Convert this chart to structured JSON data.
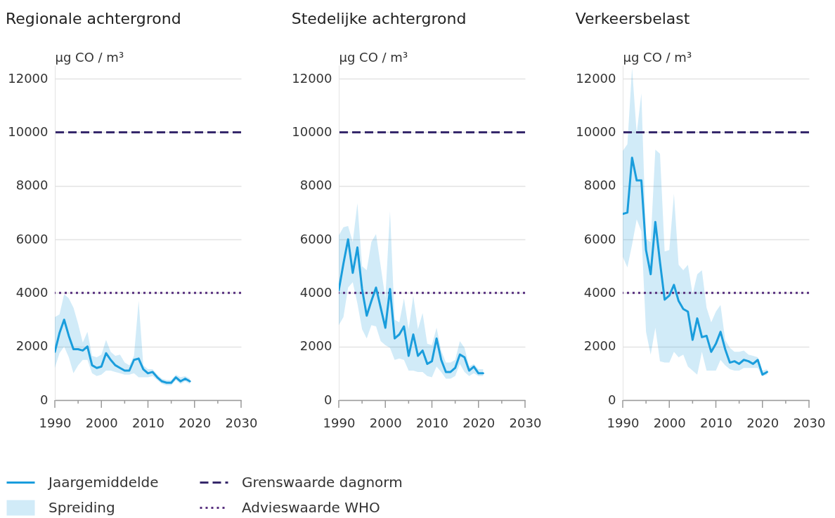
{
  "chart_data": [
    {
      "type": "line",
      "title": "Regionale achtergrond",
      "ylabel": "µg CO / m³",
      "x": [
        1990,
        1991,
        1992,
        1993,
        1994,
        1995,
        1996,
        1997,
        1998,
        1999,
        2000,
        2001,
        2002,
        2003,
        2004,
        2005,
        2006,
        2007,
        2008,
        2009,
        2010,
        2011,
        2012,
        2013,
        2014,
        2015,
        2016,
        2017,
        2018,
        2019
      ],
      "series": [
        {
          "name": "Jaargemiddelde",
          "color": "#1a9ddc",
          "values": [
            1800,
            2500,
            3000,
            2400,
            1900,
            1900,
            1850,
            2000,
            1300,
            1200,
            1250,
            1750,
            1500,
            1300,
            1200,
            1100,
            1100,
            1500,
            1550,
            1150,
            1000,
            1050,
            850,
            700,
            650,
            650,
            850,
            700,
            800,
            700
          ],
          "lower": [
            1200,
            1750,
            2000,
            1600,
            1000,
            1300,
            1500,
            1500,
            1000,
            900,
            950,
            1100,
            1100,
            1050,
            1000,
            950,
            950,
            1000,
            850,
            850,
            850,
            900,
            750,
            600,
            550,
            550,
            750,
            600,
            700,
            600
          ],
          "upper": [
            3100,
            3200,
            3950,
            3800,
            3450,
            2850,
            2150,
            2550,
            1650,
            1600,
            1700,
            2250,
            1800,
            1650,
            1700,
            1400,
            1300,
            1650,
            3700,
            1300,
            1150,
            1150,
            950,
            800,
            750,
            750,
            950,
            850,
            900,
            800
          ]
        }
      ],
      "annotations": [
        "Spreiding"
      ],
      "xlim": [
        1990,
        2030
      ],
      "xticks": [
        1990,
        {
          "value": 1995,
          "label": null
        },
        2000,
        {
          "value": 2005,
          "label": null
        },
        2010,
        {
          "value": 2015,
          "label": null
        },
        2020,
        {
          "value": 2025,
          "label": null
        },
        2030
      ],
      "ylim": [
        0,
        12500
      ],
      "yticks": [
        0,
        2000,
        4000,
        6000,
        8000,
        10000,
        12000
      ],
      "grid": "y",
      "legend": "bottom",
      "ref_lines": [
        {
          "axis": "y",
          "value": 10000,
          "label": "Grenswaarde dagnorm",
          "color": "#36286b",
          "line_style": "dashed"
        },
        {
          "axis": "y",
          "value": 4000,
          "label": "Advieswaarde WHO",
          "color": "#58307f",
          "line_style": "dotted"
        }
      ]
    },
    {
      "type": "line",
      "title": "Stedelijke achtergrond",
      "ylabel": "µg CO / m³",
      "x": [
        1990,
        1991,
        1992,
        1993,
        1994,
        1995,
        1996,
        1997,
        1998,
        1999,
        2000,
        2001,
        2002,
        2003,
        2004,
        2005,
        2006,
        2007,
        2008,
        2009,
        2010,
        2011,
        2012,
        2013,
        2014,
        2015,
        2016,
        2017,
        2018,
        2019,
        2020,
        2021
      ],
      "series": [
        {
          "color": "#1a9ddc",
          "values": [
            4100,
            5100,
            6000,
            4750,
            5700,
            4150,
            3150,
            3700,
            4200,
            3450,
            2700,
            4150,
            2300,
            2450,
            2750,
            1650,
            2450,
            1650,
            1850,
            1350,
            1450,
            2300,
            1500,
            1050,
            1050,
            1200,
            1700,
            1600,
            1100,
            1250,
            1000,
            1000
          ],
          "lower": [
            2800,
            3100,
            4200,
            4400,
            3600,
            2650,
            2300,
            2800,
            2750,
            2200,
            2050,
            1950,
            1500,
            1550,
            1500,
            1100,
            1100,
            1050,
            1050,
            900,
            850,
            1250,
            1050,
            800,
            800,
            900,
            1350,
            1050,
            900,
            1000,
            900,
            900
          ],
          "upper": [
            6150,
            6450,
            6500,
            5900,
            7350,
            5000,
            4850,
            5900,
            6200,
            5000,
            3800,
            7050,
            3000,
            2900,
            3800,
            2650,
            3900,
            2650,
            3250,
            2100,
            2050,
            2700,
            1850,
            1400,
            1400,
            1500,
            2200,
            1950,
            1250,
            1350,
            1150,
            1150
          ]
        }
      ],
      "xlim": [
        1990,
        2030
      ],
      "xticks": [
        1990,
        {
          "value": 1995,
          "label": null
        },
        2000,
        {
          "value": 2005,
          "label": null
        },
        2010,
        {
          "value": 2015,
          "label": null
        },
        2020,
        {
          "value": 2025,
          "label": null
        },
        2030
      ],
      "ylim": [
        0,
        12500
      ],
      "yticks": [
        0,
        2000,
        4000,
        6000,
        8000,
        10000,
        12000
      ],
      "grid": "y",
      "ref_lines": [
        {
          "axis": "y",
          "value": 10000,
          "color": "#36286b",
          "line_style": "dashed"
        },
        {
          "axis": "y",
          "value": 4000,
          "color": "#58307f",
          "line_style": "dotted"
        }
      ]
    },
    {
      "type": "line",
      "title": "Verkeersbelast",
      "ylabel": "µg CO / m³",
      "x": [
        1990,
        1991,
        1992,
        1993,
        1994,
        1995,
        1996,
        1997,
        1998,
        1999,
        2000,
        2001,
        2002,
        2003,
        2004,
        2005,
        2006,
        2007,
        2008,
        2009,
        2010,
        2011,
        2012,
        2013,
        2014,
        2015,
        2016,
        2017,
        2018,
        2019,
        2020,
        2021
      ],
      "series": [
        {
          "color": "#1a9ddc",
          "values": [
            6950,
            7000,
            9050,
            8200,
            8200,
            5600,
            4700,
            6650,
            5150,
            3750,
            3900,
            4300,
            3700,
            3400,
            3300,
            2250,
            3050,
            2350,
            2400,
            1800,
            2100,
            2550,
            1900,
            1400,
            1450,
            1350,
            1500,
            1450,
            1350,
            1500,
            950,
            1050
          ],
          "lower": [
            5350,
            4950,
            5800,
            6750,
            6300,
            2550,
            1700,
            2700,
            1450,
            1400,
            1400,
            1800,
            1600,
            1700,
            1250,
            1100,
            950,
            1800,
            1100,
            1100,
            1100,
            1500,
            1300,
            1150,
            1100,
            1100,
            1200,
            1200,
            1200,
            1200,
            900,
            950
          ],
          "upper": [
            9300,
            9550,
            12400,
            9950,
            11450,
            6000,
            5900,
            9350,
            9200,
            5550,
            5600,
            7700,
            5050,
            4850,
            5050,
            3950,
            4700,
            4850,
            3450,
            2900,
            3300,
            3550,
            2250,
            1950,
            1800,
            1800,
            1850,
            1700,
            1650,
            1600,
            1100,
            1150
          ]
        }
      ],
      "xlim": [
        1990,
        2030
      ],
      "xticks": [
        1990,
        {
          "value": 1995,
          "label": null
        },
        2000,
        {
          "value": 2005,
          "label": null
        },
        2010,
        {
          "value": 2015,
          "label": null
        },
        2020,
        {
          "value": 2025,
          "label": null
        },
        2030
      ],
      "ylim": [
        0,
        12500
      ],
      "yticks": [
        0,
        2000,
        4000,
        6000,
        8000,
        10000,
        12000
      ],
      "grid": "y",
      "ref_lines": [
        {
          "axis": "y",
          "value": 10000,
          "color": "#36286b",
          "line_style": "dashed"
        },
        {
          "axis": "y",
          "value": 4000,
          "color": "#58307f",
          "line_style": "dotted"
        }
      ]
    }
  ]
}
